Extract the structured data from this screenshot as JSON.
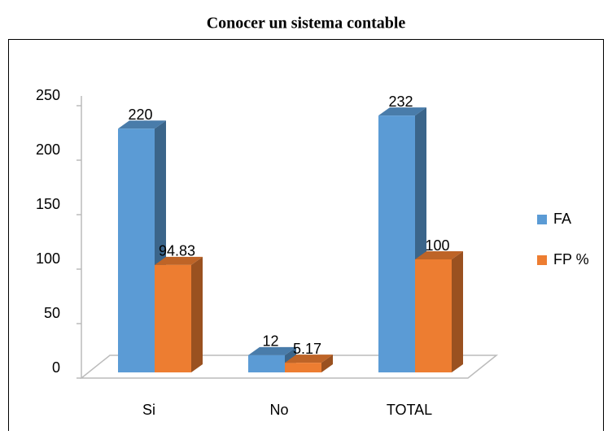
{
  "chart_data": {
    "type": "bar3d",
    "title": "Conocer un sistema contable",
    "categories": [
      "Si",
      "No",
      "TOTAL"
    ],
    "series": [
      {
        "name": "FA",
        "color": "#5b9bd5",
        "values": [
          220,
          12,
          232
        ]
      },
      {
        "name": "FP %",
        "color": "#ed7d31",
        "values": [
          94.83,
          5.17,
          100
        ]
      }
    ],
    "ylim": [
      0,
      250
    ],
    "yticks": [
      0,
      50,
      100,
      150,
      200,
      250
    ],
    "legend": "right",
    "grid": false
  }
}
